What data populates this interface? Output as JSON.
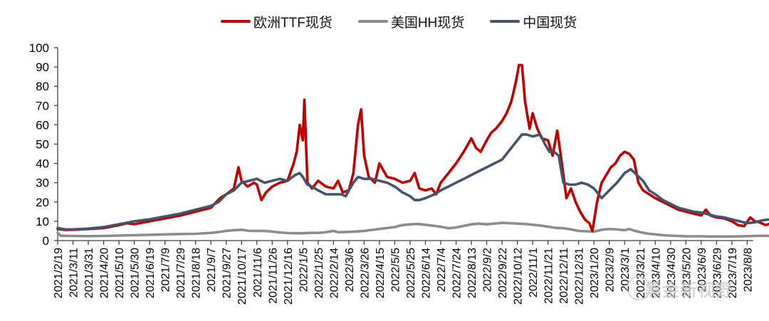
{
  "chart_data": {
    "type": "line",
    "title": "",
    "xlabel": "",
    "ylabel": "",
    "ylim": [
      0,
      100
    ],
    "yticks": [
      0,
      10,
      20,
      30,
      40,
      50,
      60,
      70,
      80,
      90,
      100
    ],
    "grid": false,
    "legend_position": "top",
    "x_tick_labels": [
      "2021/2/19",
      "2021/3/11",
      "2021/3/31",
      "2021/4/20",
      "2021/5/10",
      "2021/5/30",
      "2021/6/19",
      "2021/7/9",
      "2021/7/29",
      "2021/8/18",
      "2021/9/7",
      "2021/9/27",
      "2021/10/17",
      "2021/11/6",
      "2021/11/26",
      "2021/12/16",
      "2022/1/5",
      "2022/1/25",
      "2022/2/14",
      "2022/3/6",
      "2022/3/26",
      "2022/4/15",
      "2022/5/5",
      "2022/5/25",
      "2022/6/14",
      "2022/7/4",
      "2022/7/24",
      "2022/8/13",
      "2022/9/2",
      "2022/9/22",
      "2022/10/12",
      "2022/11/1",
      "2022/11/21",
      "2022/12/11",
      "2022/12/31",
      "2023/1/20",
      "2023/2/9",
      "2023/3/1",
      "2023/3/21",
      "2023/4/10",
      "2023/4/30",
      "2023/5/20",
      "2023/6/9",
      "2023/6/29",
      "2023/7/19",
      "2023/8/8"
    ],
    "x_index_note": "x values are fractional positions along the tick sequence (0 = 2021/2/19, 45 = 2023/8/8)",
    "series": [
      {
        "name": "欧洲TTF现货",
        "color": "#C00000",
        "points": [
          [
            0,
            6
          ],
          [
            0.5,
            5.5
          ],
          [
            1,
            5.6
          ],
          [
            2,
            6
          ],
          [
            3,
            6.5
          ],
          [
            4,
            8
          ],
          [
            4.5,
            9
          ],
          [
            5,
            8.5
          ],
          [
            6,
            10
          ],
          [
            7,
            11.5
          ],
          [
            8,
            13
          ],
          [
            9,
            15
          ],
          [
            10,
            17
          ],
          [
            10.6,
            22
          ],
          [
            11,
            24
          ],
          [
            11.5,
            27
          ],
          [
            11.8,
            38
          ],
          [
            12,
            31
          ],
          [
            12.4,
            28
          ],
          [
            12.8,
            30
          ],
          [
            13,
            29
          ],
          [
            13.3,
            21
          ],
          [
            13.6,
            25
          ],
          [
            14,
            28
          ],
          [
            14.5,
            30
          ],
          [
            15,
            31
          ],
          [
            15.4,
            40
          ],
          [
            15.6,
            46
          ],
          [
            15.8,
            60
          ],
          [
            16,
            52
          ],
          [
            16.1,
            73
          ],
          [
            16.3,
            30
          ],
          [
            16.6,
            27
          ],
          [
            17,
            31
          ],
          [
            17.5,
            28
          ],
          [
            18,
            27
          ],
          [
            18.3,
            31
          ],
          [
            18.6,
            25
          ],
          [
            19,
            26
          ],
          [
            19.3,
            35
          ],
          [
            19.6,
            60
          ],
          [
            19.8,
            68
          ],
          [
            20,
            44
          ],
          [
            20.3,
            33
          ],
          [
            20.7,
            30
          ],
          [
            21,
            40
          ],
          [
            21.5,
            33
          ],
          [
            22,
            32
          ],
          [
            22.5,
            30
          ],
          [
            23,
            31
          ],
          [
            23.3,
            35
          ],
          [
            23.6,
            27
          ],
          [
            24,
            26
          ],
          [
            24.4,
            27
          ],
          [
            24.7,
            24
          ],
          [
            25,
            30
          ],
          [
            25.5,
            35
          ],
          [
            26,
            40
          ],
          [
            26.5,
            46
          ],
          [
            27,
            53
          ],
          [
            27.3,
            48
          ],
          [
            27.6,
            46
          ],
          [
            28,
            52
          ],
          [
            28.3,
            56
          ],
          [
            28.6,
            58
          ],
          [
            29,
            62
          ],
          [
            29.3,
            66
          ],
          [
            29.6,
            72
          ],
          [
            29.9,
            82
          ],
          [
            30.1,
            91
          ],
          [
            30.3,
            91
          ],
          [
            30.5,
            72
          ],
          [
            30.8,
            58
          ],
          [
            31,
            66
          ],
          [
            31.3,
            58
          ],
          [
            31.6,
            53
          ],
          [
            32,
            52
          ],
          [
            32.3,
            44
          ],
          [
            32.6,
            57
          ],
          [
            32.8,
            46
          ],
          [
            33.2,
            22
          ],
          [
            33.5,
            27
          ],
          [
            33.8,
            20
          ],
          [
            34.1,
            15
          ],
          [
            34.4,
            11
          ],
          [
            34.7,
            9
          ],
          [
            34.9,
            5
          ],
          [
            35.2,
            20
          ],
          [
            35.5,
            30
          ],
          [
            35.8,
            34
          ],
          [
            36.1,
            38
          ],
          [
            36.4,
            40
          ],
          [
            36.7,
            44
          ],
          [
            37,
            46
          ],
          [
            37.3,
            45
          ],
          [
            37.6,
            42
          ],
          [
            37.9,
            30
          ],
          [
            38.2,
            26
          ],
          [
            38.6,
            24
          ],
          [
            39,
            22
          ],
          [
            39.5,
            20
          ],
          [
            40,
            18
          ],
          [
            40.5,
            16
          ],
          [
            41,
            15
          ],
          [
            41.5,
            14
          ],
          [
            42,
            13
          ],
          [
            42.3,
            16
          ],
          [
            42.6,
            13
          ],
          [
            43,
            12
          ],
          [
            43.5,
            11.5
          ],
          [
            44,
            10
          ],
          [
            44.4,
            8
          ],
          [
            44.8,
            7.5
          ],
          [
            45.2,
            12
          ],
          [
            45.5,
            10
          ],
          [
            45.8,
            9.5
          ],
          [
            46.2,
            8
          ],
          [
            46.6,
            9
          ],
          [
            47,
            9.5
          ],
          [
            47.3,
            10
          ],
          [
            47.6,
            11
          ]
        ]
      },
      {
        "name": "美国HH现货",
        "color": "#8C8C8C",
        "points": [
          [
            0,
            4
          ],
          [
            0.2,
            2.5
          ],
          [
            1,
            2.4
          ],
          [
            2,
            2.3
          ],
          [
            3,
            2.4
          ],
          [
            4,
            2.6
          ],
          [
            5,
            2.8
          ],
          [
            6,
            3
          ],
          [
            7,
            3.2
          ],
          [
            8,
            3.4
          ],
          [
            9,
            3.5
          ],
          [
            10,
            4
          ],
          [
            10.5,
            4.4
          ],
          [
            11,
            5
          ],
          [
            11.5,
            5.4
          ],
          [
            12,
            5.6
          ],
          [
            12.5,
            5
          ],
          [
            13,
            5
          ],
          [
            13.5,
            5
          ],
          [
            14,
            4.7
          ],
          [
            14.5,
            4.2
          ],
          [
            15,
            3.9
          ],
          [
            15.5,
            3.8
          ],
          [
            16,
            3.8
          ],
          [
            16.5,
            4
          ],
          [
            17,
            4
          ],
          [
            17.5,
            4.3
          ],
          [
            18,
            5
          ],
          [
            18.3,
            4.3
          ],
          [
            18.6,
            4.4
          ],
          [
            19,
            4.5
          ],
          [
            19.5,
            4.7
          ],
          [
            20,
            5
          ],
          [
            21,
            6
          ],
          [
            22,
            7
          ],
          [
            22.5,
            8
          ],
          [
            23,
            8.4
          ],
          [
            23.5,
            8.6
          ],
          [
            24,
            8.2
          ],
          [
            25,
            7.2
          ],
          [
            25.5,
            6.4
          ],
          [
            26,
            6.8
          ],
          [
            26.5,
            7.6
          ],
          [
            27,
            8.4
          ],
          [
            27.5,
            8.8
          ],
          [
            28,
            8.4
          ],
          [
            28.5,
            8.8
          ],
          [
            29,
            9.2
          ],
          [
            29.5,
            9
          ],
          [
            30,
            8.8
          ],
          [
            30.5,
            8.6
          ],
          [
            31,
            8.2
          ],
          [
            31.5,
            7.8
          ],
          [
            32,
            7.2
          ],
          [
            32.5,
            6.6
          ],
          [
            33,
            6.4
          ],
          [
            33.5,
            5.8
          ],
          [
            34,
            5
          ],
          [
            34.5,
            4.8
          ],
          [
            35,
            4.6
          ],
          [
            35.5,
            5.6
          ],
          [
            36,
            6
          ],
          [
            36.5,
            5.8
          ],
          [
            37,
            5.4
          ],
          [
            37.3,
            6
          ],
          [
            37.6,
            5.2
          ],
          [
            38,
            4.4
          ],
          [
            38.5,
            3.6
          ],
          [
            39,
            3.2
          ],
          [
            39.5,
            2.8
          ],
          [
            40,
            2.6
          ],
          [
            40.5,
            2.4
          ],
          [
            41,
            2.2
          ],
          [
            41.5,
            2.2
          ],
          [
            42,
            2.2
          ],
          [
            42.5,
            2.1
          ],
          [
            43,
            2.1
          ],
          [
            43.5,
            2.1
          ],
          [
            44,
            2.1
          ],
          [
            44.5,
            2.2
          ],
          [
            45,
            2.3
          ],
          [
            45.5,
            2.4
          ],
          [
            46,
            2.5
          ],
          [
            46.5,
            2.4
          ],
          [
            47,
            2.5
          ],
          [
            47.6,
            2.5
          ]
        ]
      },
      {
        "name": "中国现货",
        "color": "#44546A",
        "points": [
          [
            0,
            6.5
          ],
          [
            0.5,
            5.8
          ],
          [
            1,
            5.8
          ],
          [
            2,
            6.2
          ],
          [
            3,
            7
          ],
          [
            4,
            8.5
          ],
          [
            5,
            10
          ],
          [
            6,
            11
          ],
          [
            7,
            12.5
          ],
          [
            8,
            14
          ],
          [
            9,
            16
          ],
          [
            10,
            18
          ],
          [
            10.5,
            20
          ],
          [
            11,
            24
          ],
          [
            11.5,
            26
          ],
          [
            12,
            30
          ],
          [
            12.5,
            31
          ],
          [
            13,
            32
          ],
          [
            13.5,
            30
          ],
          [
            14,
            31
          ],
          [
            14.5,
            32
          ],
          [
            15,
            31
          ],
          [
            15.5,
            34
          ],
          [
            15.8,
            35
          ],
          [
            16,
            33
          ],
          [
            16.3,
            29
          ],
          [
            16.6,
            28
          ],
          [
            17,
            26
          ],
          [
            17.5,
            24
          ],
          [
            18,
            24
          ],
          [
            18.5,
            24
          ],
          [
            18.8,
            23
          ],
          [
            19,
            26
          ],
          [
            19.3,
            30
          ],
          [
            19.6,
            33
          ],
          [
            20,
            32
          ],
          [
            20.5,
            32
          ],
          [
            21,
            31
          ],
          [
            21.5,
            30
          ],
          [
            22,
            28
          ],
          [
            22.5,
            25
          ],
          [
            23,
            23
          ],
          [
            23.3,
            21
          ],
          [
            23.6,
            21
          ],
          [
            24,
            22
          ],
          [
            24.3,
            23
          ],
          [
            24.6,
            24
          ],
          [
            25,
            26
          ],
          [
            25.5,
            28
          ],
          [
            26,
            30
          ],
          [
            26.5,
            32
          ],
          [
            27,
            34
          ],
          [
            27.5,
            36
          ],
          [
            28,
            38
          ],
          [
            28.5,
            40
          ],
          [
            29,
            42
          ],
          [
            29.3,
            45
          ],
          [
            29.6,
            48
          ],
          [
            30,
            52
          ],
          [
            30.3,
            55
          ],
          [
            30.6,
            55
          ],
          [
            31,
            54
          ],
          [
            31.5,
            55
          ],
          [
            31.8,
            50
          ],
          [
            32.1,
            46
          ],
          [
            32.4,
            46
          ],
          [
            32.7,
            44
          ],
          [
            33,
            30
          ],
          [
            33.4,
            29
          ],
          [
            33.8,
            29
          ],
          [
            34.2,
            30
          ],
          [
            34.6,
            29
          ],
          [
            35,
            27
          ],
          [
            35.5,
            22
          ],
          [
            36,
            26
          ],
          [
            36.5,
            30
          ],
          [
            37,
            35
          ],
          [
            37.4,
            37
          ],
          [
            37.8,
            34
          ],
          [
            38.2,
            31
          ],
          [
            38.6,
            26
          ],
          [
            39,
            24
          ],
          [
            39.5,
            21
          ],
          [
            40,
            19
          ],
          [
            40.5,
            17
          ],
          [
            41,
            16
          ],
          [
            41.5,
            15
          ],
          [
            42,
            14.5
          ],
          [
            42.5,
            13.5
          ],
          [
            43,
            12.5
          ],
          [
            43.5,
            12
          ],
          [
            44,
            11
          ],
          [
            44.5,
            10
          ],
          [
            45,
            9
          ],
          [
            45.5,
            9.5
          ],
          [
            46,
            10.5
          ],
          [
            46.5,
            11
          ],
          [
            47,
            11
          ],
          [
            47.4,
            11.5
          ],
          [
            47.6,
            13
          ]
        ]
      }
    ]
  },
  "legend": {
    "items": [
      {
        "label": "欧洲TTF现货",
        "color": "#C00000"
      },
      {
        "label": "美国HH现货",
        "color": "#8C8C8C"
      },
      {
        "label": "中国现货",
        "color": "#44546A"
      }
    ]
  },
  "watermark": {
    "text": "黑金新视野"
  }
}
